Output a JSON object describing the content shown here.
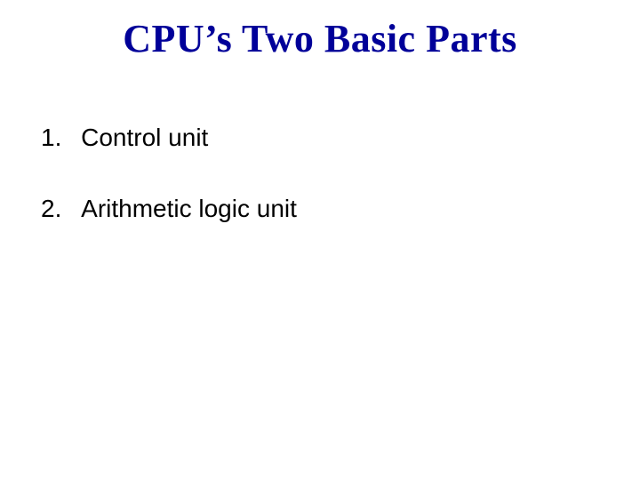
{
  "slide": {
    "title": "CPU’s Two Basic Parts",
    "title_color": "#000099",
    "title_fontsize": 44,
    "title_fontweight": "bold",
    "background_color": "#ffffff",
    "items": [
      {
        "number": "1.",
        "text": "Control unit"
      },
      {
        "number": "2.",
        "text": "Arithmetic logic unit"
      }
    ],
    "item_fontsize": 28,
    "item_color": "#000000",
    "item_fontfamily": "Arial"
  }
}
